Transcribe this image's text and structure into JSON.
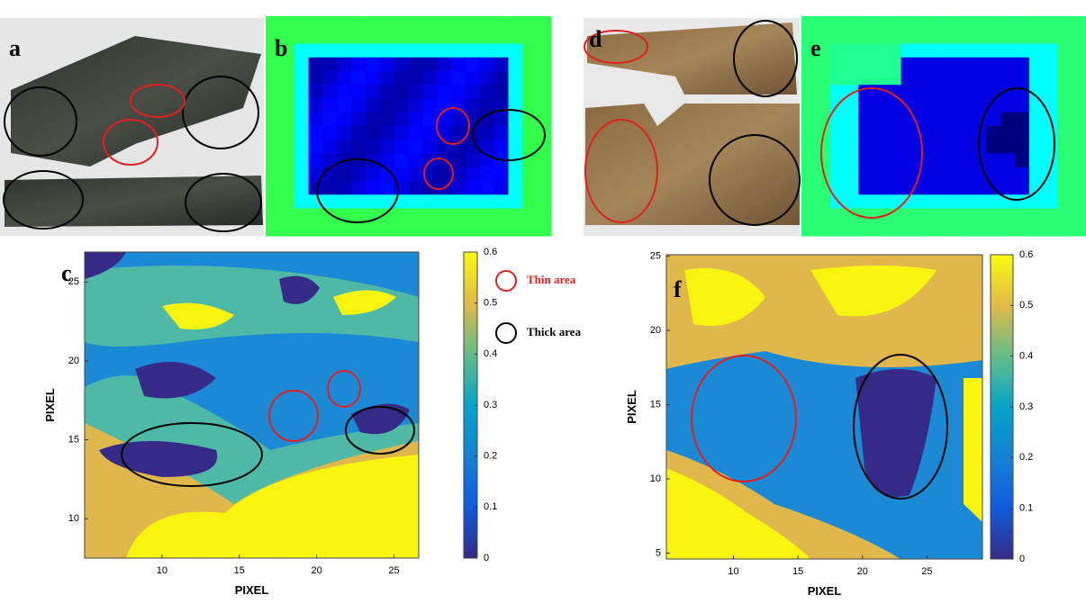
{
  "panels": [
    "a",
    "b",
    "c",
    "d",
    "e",
    "f"
  ],
  "legend": [
    {
      "label": "Thin area",
      "color": "#e02020"
    },
    {
      "label": "Thick area",
      "color": "#000000"
    }
  ],
  "plots": [
    {
      "x_label": "PIXEL",
      "y_label": "PIXEL",
      "xlim": [
        5,
        26.6
      ],
      "ylim": [
        7.5,
        26.9
      ],
      "xticks": [
        10,
        15,
        20,
        25
      ],
      "yticks": [
        10,
        15,
        20,
        25
      ],
      "colorbar": {
        "lim": [
          0,
          0.6
        ],
        "ticks": [
          0,
          0.1,
          0.2,
          0.3,
          0.4,
          0.5,
          0.6
        ]
      }
    },
    {
      "x_label": "PIXEL",
      "y_label": "PIXEL",
      "xlim": [
        4.8,
        29.3
      ],
      "ylim": [
        4.6,
        25.1
      ],
      "xticks": [
        10,
        15,
        20,
        25
      ],
      "yticks": [
        5,
        10,
        15,
        20,
        25
      ],
      "colorbar": {
        "lim": [
          0,
          0.6
        ],
        "ticks": [
          0,
          0.1,
          0.2,
          0.3,
          0.4,
          0.5,
          0.6
        ]
      }
    }
  ]
}
